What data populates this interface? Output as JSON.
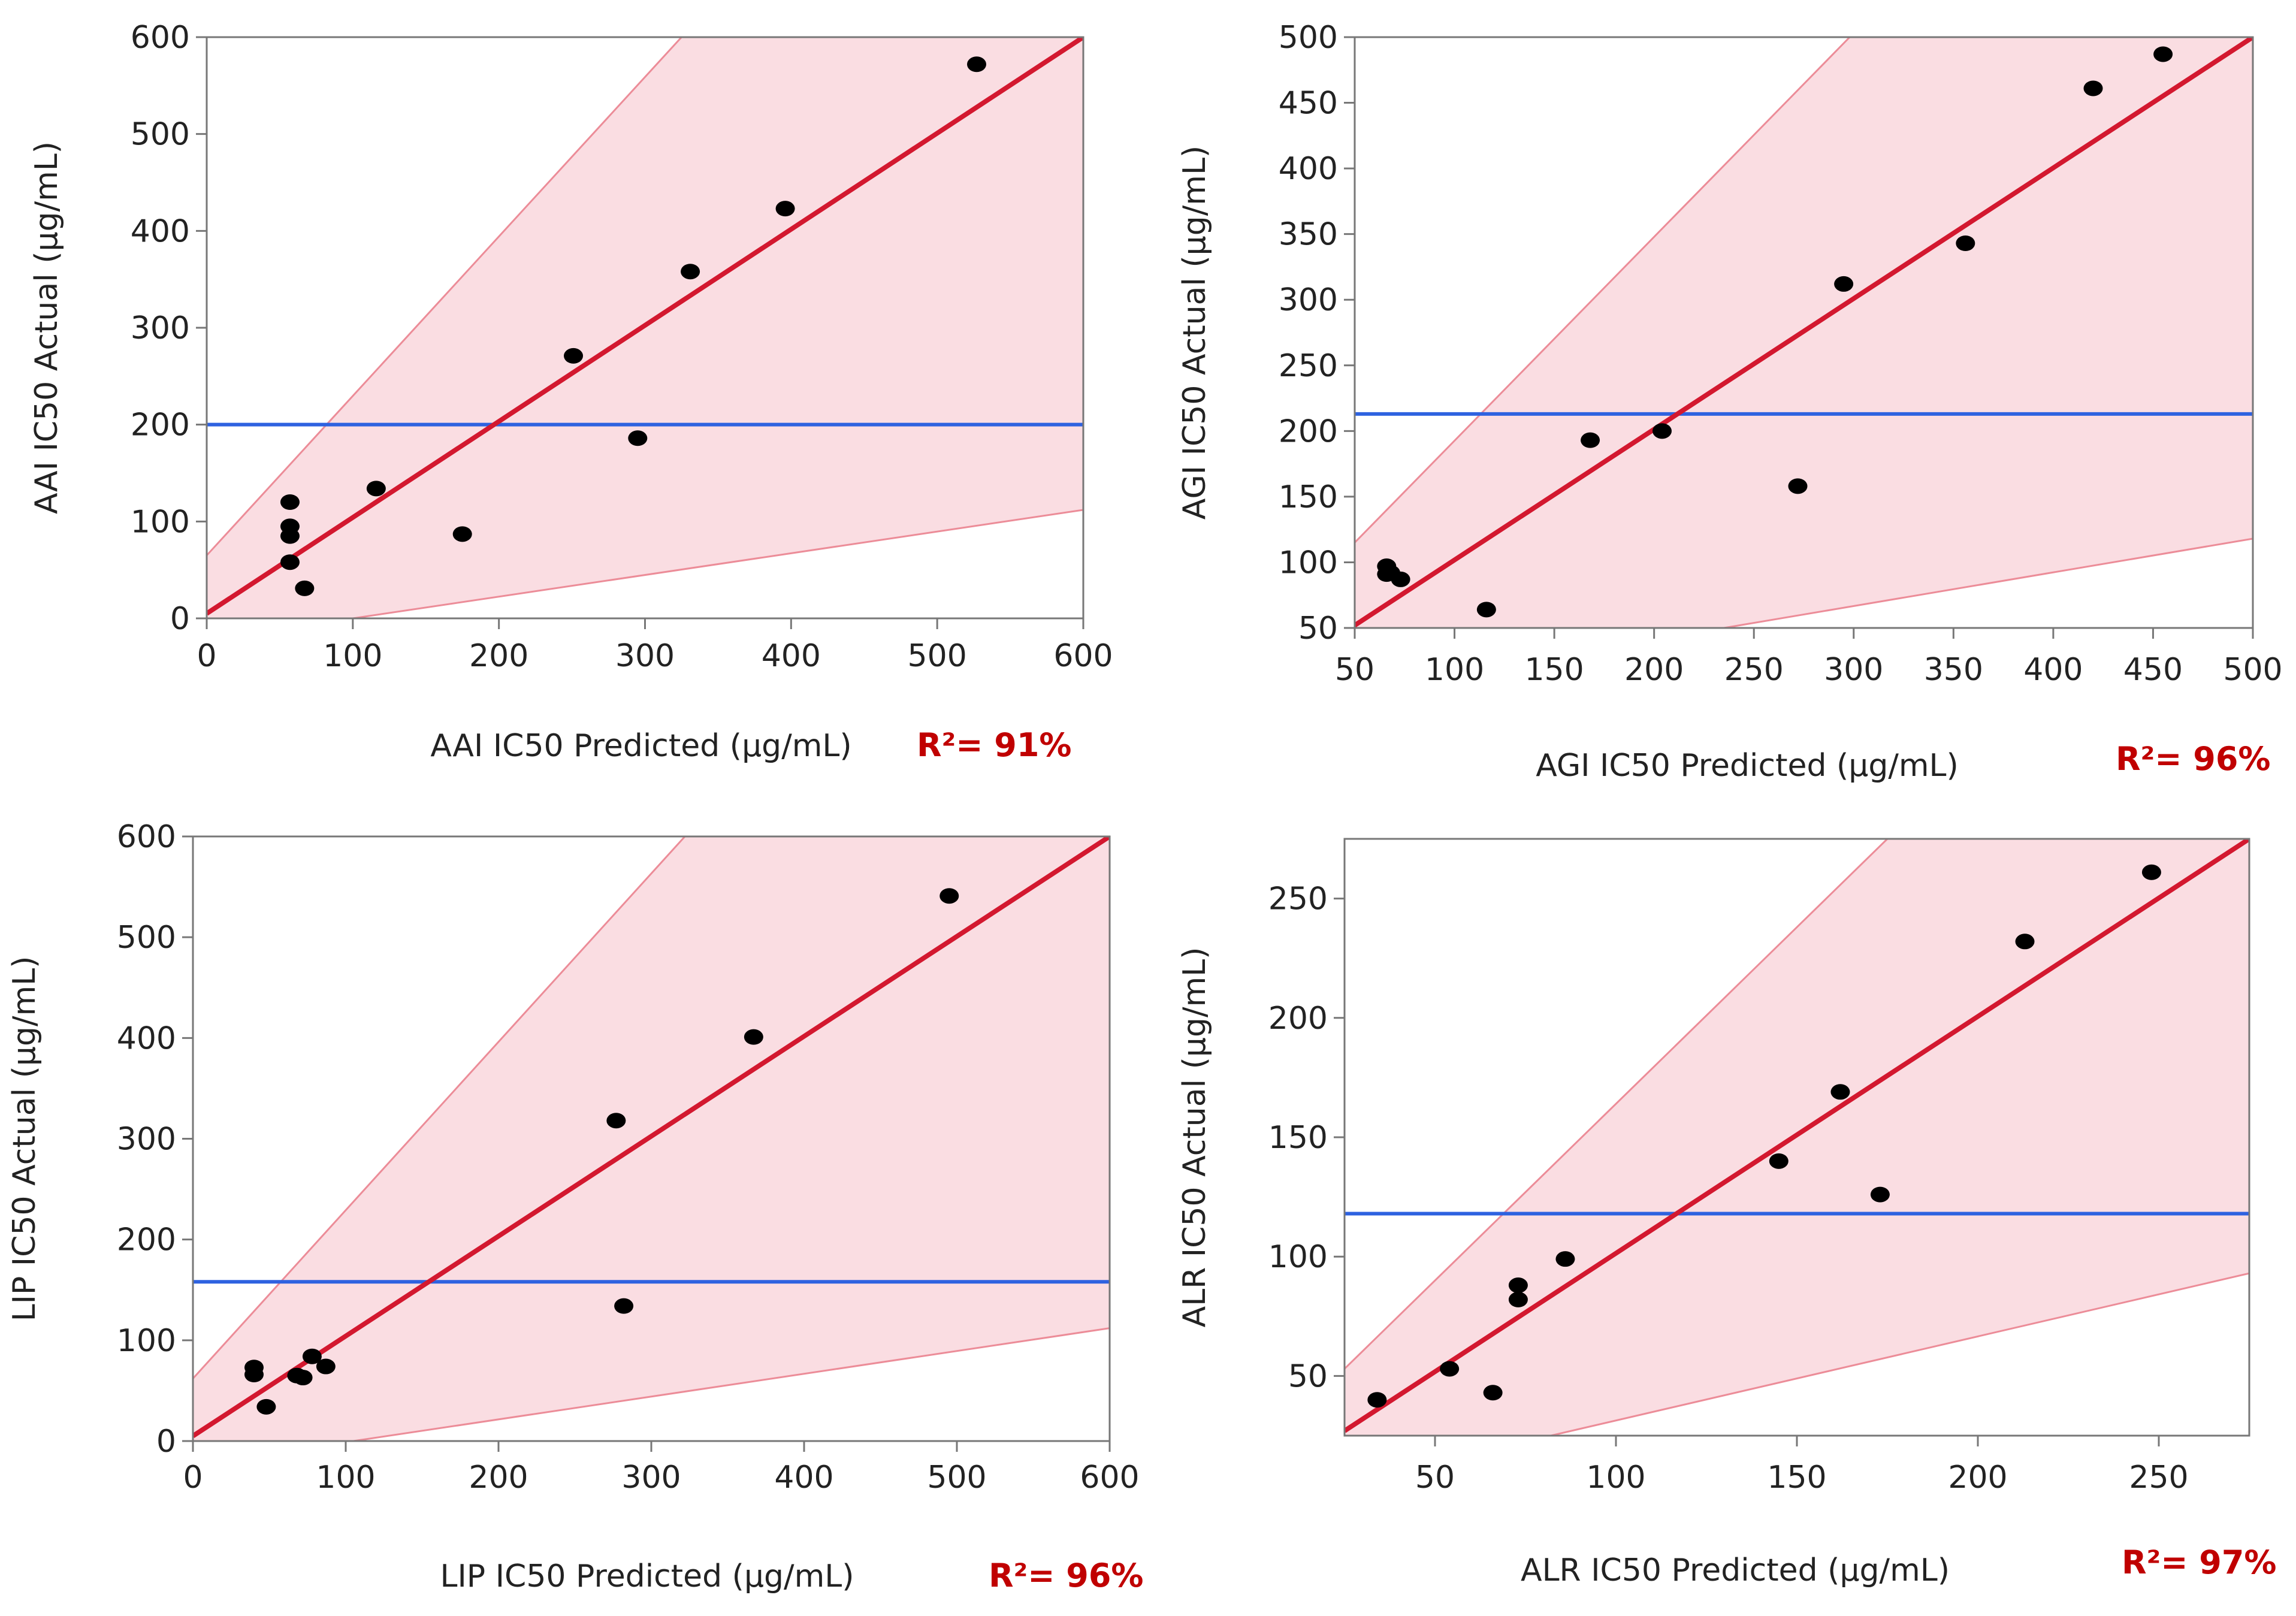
{
  "figure": {
    "colors": {
      "fit_line": "#d3182f",
      "mean_line": "#2e62e0",
      "band_fill": "#fadde2",
      "band_edge": "#ec8c98",
      "point": "#000000",
      "frame": "#777777",
      "r2_text": "#c00000"
    }
  },
  "chart_data": [
    {
      "type": "scatter",
      "panel": "AAI",
      "title": "",
      "xlabel": "AAI IC50 Predicted (µg/mL)",
      "ylabel": "AAI IC50 Actual (µg/mL)",
      "r2": "R²= 91%",
      "xlim": [
        0,
        600
      ],
      "ylim": [
        0,
        600
      ],
      "xticks": [
        "0",
        "100",
        "200",
        "300",
        "400",
        "500",
        "600"
      ],
      "yticks": [
        "0",
        "100",
        "200",
        "300",
        "400",
        "500",
        "600"
      ],
      "mean_y": 200,
      "fit": [
        [
          0,
          5
        ],
        [
          600,
          600
        ]
      ],
      "band_upper": [
        [
          0,
          65
        ],
        [
          325,
          600
        ]
      ],
      "band_lower": [
        [
          100,
          0
        ],
        [
          600,
          112
        ]
      ],
      "points": [
        [
          57,
          120
        ],
        [
          57,
          95
        ],
        [
          57,
          85
        ],
        [
          57,
          58
        ],
        [
          67,
          31
        ],
        [
          116,
          134
        ],
        [
          175,
          87
        ],
        [
          251,
          271
        ],
        [
          295,
          186
        ],
        [
          331,
          358
        ],
        [
          396,
          423
        ],
        [
          527,
          572
        ]
      ]
    },
    {
      "type": "scatter",
      "panel": "AGI",
      "title": "",
      "xlabel": "AGI IC50 Predicted (µg/mL)",
      "ylabel": "AGI IC50 Actual (µg/mL)",
      "r2": "R²= 96%",
      "xlim": [
        50,
        500
      ],
      "ylim": [
        50,
        500
      ],
      "xticks": [
        "50",
        "100",
        "150",
        "200",
        "250",
        "300",
        "350",
        "400",
        "450",
        "500"
      ],
      "yticks": [
        "50",
        "100",
        "150",
        "200",
        "250",
        "300",
        "350",
        "400",
        "450",
        "500"
      ],
      "mean_y": 213,
      "fit": [
        [
          50,
          52
        ],
        [
          500,
          500
        ]
      ],
      "band_upper": [
        [
          50,
          115
        ],
        [
          298,
          500
        ]
      ],
      "band_lower": [
        [
          235,
          50
        ],
        [
          500,
          118
        ]
      ],
      "points": [
        [
          66,
          97
        ],
        [
          66,
          91
        ],
        [
          68,
          92
        ],
        [
          73,
          87
        ],
        [
          116,
          64
        ],
        [
          168,
          193
        ],
        [
          204,
          200
        ],
        [
          272,
          158
        ],
        [
          295,
          312
        ],
        [
          356,
          343
        ],
        [
          420,
          461
        ],
        [
          455,
          487
        ]
      ]
    },
    {
      "type": "scatter",
      "panel": "LIP",
      "title": "",
      "xlabel": "LIP IC50 Predicted (µg/mL)",
      "ylabel": "LIP IC50 Actual (µg/mL)",
      "r2": "R²= 96%",
      "xlim": [
        0,
        600
      ],
      "ylim": [
        0,
        600
      ],
      "xticks": [
        "0",
        "100",
        "200",
        "300",
        "400",
        "500",
        "600"
      ],
      "yticks": [
        "0",
        "100",
        "200",
        "300",
        "400",
        "500",
        "600"
      ],
      "mean_y": 158,
      "fit": [
        [
          0,
          5
        ],
        [
          600,
          600
        ]
      ],
      "band_upper": [
        [
          0,
          62
        ],
        [
          322,
          600
        ]
      ],
      "band_lower": [
        [
          105,
          0
        ],
        [
          600,
          112
        ]
      ],
      "points": [
        [
          40,
          73
        ],
        [
          40,
          66
        ],
        [
          48,
          34
        ],
        [
          68,
          65
        ],
        [
          72,
          63
        ],
        [
          78,
          84
        ],
        [
          87,
          74
        ],
        [
          277,
          318
        ],
        [
          282,
          134
        ],
        [
          367,
          401
        ],
        [
          495,
          541
        ]
      ]
    },
    {
      "type": "scatter",
      "panel": "ALR",
      "title": "",
      "xlabel": "ALR IC50 Predicted (µg/mL)",
      "ylabel": "ALR IC50 Actual (µg/mL)",
      "r2": "R²= 97%",
      "xlim": [
        25,
        275
      ],
      "ylim": [
        25,
        275
      ],
      "xticks": [
        "50",
        "100",
        "150",
        "200",
        "250"
      ],
      "yticks": [
        "50",
        "100",
        "150",
        "200",
        "250"
      ],
      "mean_y": 118,
      "fit": [
        [
          25,
          27
        ],
        [
          275,
          275
        ]
      ],
      "band_upper": [
        [
          25,
          53
        ],
        [
          175,
          275
        ]
      ],
      "band_lower": [
        [
          82,
          25
        ],
        [
          275,
          93
        ]
      ],
      "points": [
        [
          34,
          40
        ],
        [
          54,
          53
        ],
        [
          66,
          43
        ],
        [
          73,
          88
        ],
        [
          73,
          82
        ],
        [
          86,
          99
        ],
        [
          145,
          140
        ],
        [
          162,
          169
        ],
        [
          173,
          126
        ],
        [
          213,
          232
        ],
        [
          248,
          261
        ]
      ]
    }
  ]
}
